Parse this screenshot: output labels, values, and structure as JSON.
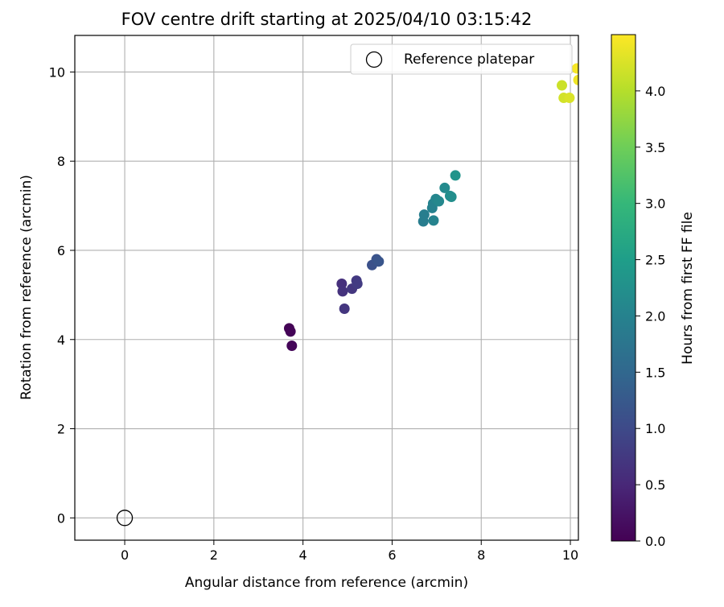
{
  "chart_data": {
    "type": "scatter",
    "title": "FOV centre drift starting at 2025/04/10 03:15:42",
    "xlabel": "Angular distance from reference (arcmin)",
    "ylabel": "Rotation from reference (arcmin)",
    "xlim": [
      -1.12,
      10.18
    ],
    "ylim": [
      -0.5,
      10.82
    ],
    "xticks": [
      0,
      2,
      4,
      6,
      8,
      10
    ],
    "yticks": [
      0,
      2,
      4,
      6,
      8,
      10
    ],
    "grid": true,
    "legend": {
      "position": "top-right",
      "entries": [
        "Reference platepar"
      ]
    },
    "reference_point": {
      "x": 0,
      "y": 0,
      "label": "Reference platepar"
    },
    "colorbar": {
      "label": "Hours from first FF file",
      "colormap": "viridis",
      "range": [
        0,
        4.5
      ],
      "ticks": [
        0.0,
        0.5,
        1.0,
        1.5,
        2.0,
        2.5,
        3.0,
        3.5,
        4.0
      ],
      "stops": [
        "#440154",
        "#482878",
        "#3e4a89",
        "#31688e",
        "#26828e",
        "#1f9e89",
        "#35b779",
        "#6ece58",
        "#b5de2b",
        "#fde725"
      ]
    },
    "points": [
      {
        "x": 3.69,
        "y": 4.25,
        "c": 0.02
      },
      {
        "x": 3.72,
        "y": 4.18,
        "c": 0.04
      },
      {
        "x": 3.75,
        "y": 3.86,
        "c": 0.06
      },
      {
        "x": 4.87,
        "y": 5.25,
        "c": 0.62
      },
      {
        "x": 4.89,
        "y": 5.08,
        "c": 0.65
      },
      {
        "x": 4.93,
        "y": 4.69,
        "c": 0.7
      },
      {
        "x": 5.1,
        "y": 5.14,
        "c": 0.72
      },
      {
        "x": 5.2,
        "y": 5.32,
        "c": 0.75
      },
      {
        "x": 5.22,
        "y": 5.25,
        "c": 0.78
      },
      {
        "x": 5.55,
        "y": 5.67,
        "c": 1.12
      },
      {
        "x": 5.65,
        "y": 5.8,
        "c": 1.15
      },
      {
        "x": 5.7,
        "y": 5.75,
        "c": 1.18
      },
      {
        "x": 6.7,
        "y": 6.65,
        "c": 1.9
      },
      {
        "x": 6.72,
        "y": 6.8,
        "c": 1.92
      },
      {
        "x": 6.9,
        "y": 6.95,
        "c": 1.98
      },
      {
        "x": 6.92,
        "y": 7.05,
        "c": 2.0
      },
      {
        "x": 6.93,
        "y": 6.67,
        "c": 2.02
      },
      {
        "x": 6.98,
        "y": 7.15,
        "c": 2.06
      },
      {
        "x": 7.05,
        "y": 7.1,
        "c": 2.1
      },
      {
        "x": 7.18,
        "y": 7.4,
        "c": 2.15
      },
      {
        "x": 7.3,
        "y": 7.22,
        "c": 2.2
      },
      {
        "x": 7.33,
        "y": 7.2,
        "c": 2.22
      },
      {
        "x": 7.42,
        "y": 7.68,
        "c": 2.32
      },
      {
        "x": 9.81,
        "y": 9.7,
        "c": 4.15
      },
      {
        "x": 9.85,
        "y": 9.42,
        "c": 4.2
      },
      {
        "x": 9.98,
        "y": 9.42,
        "c": 4.25
      },
      {
        "x": 10.15,
        "y": 10.08,
        "c": 4.45
      },
      {
        "x": 10.18,
        "y": 9.82,
        "c": 4.4
      }
    ]
  }
}
